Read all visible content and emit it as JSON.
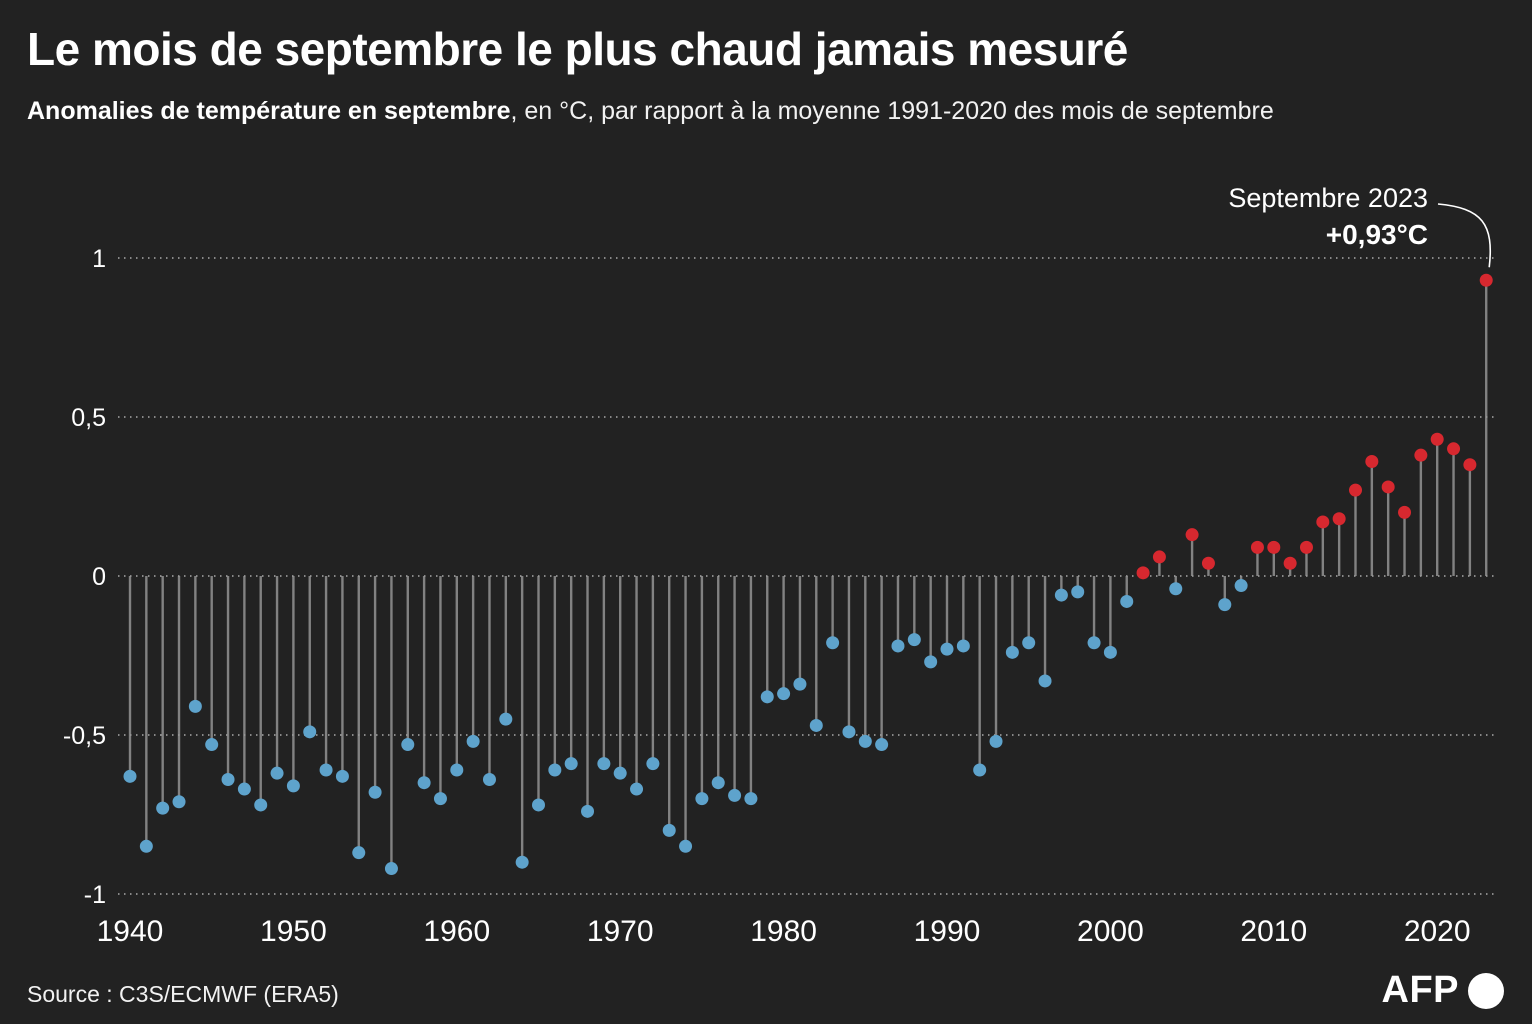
{
  "header": {
    "title": "Le mois de septembre le plus chaud jamais mesuré",
    "subtitle_bold": "Anomalies de température en septembre",
    "subtitle_rest": ", en °C, par rapport à la moyenne 1991-2020 des mois de septembre"
  },
  "annotation": {
    "line1": "Septembre 2023",
    "line2": "+0,93°C"
  },
  "footer": {
    "source": "Source : C3S/ECMWF (ERA5)",
    "logo": "AFP"
  },
  "colors": {
    "background": "#222222",
    "text": "#ffffff",
    "stem": "#9b9b9b",
    "gridline": "#cccccc",
    "negative_dot": "#5ea3cc",
    "positive_dot": "#d7282f"
  },
  "chart_data": {
    "type": "scatter",
    "variant": "lollipop-stem",
    "title": "Anomalies de température en septembre (°C) par rapport à la moyenne 1991-2020",
    "xlabel": "",
    "ylabel": "",
    "unit": "°C",
    "ylim": [
      -1,
      1
    ],
    "grid": "dotted-horizontal",
    "yticks": {
      "values": [
        1,
        0.5,
        0,
        -0.5,
        -1
      ],
      "labels": [
        "1",
        "0,5",
        "0",
        "-0,5",
        "-1"
      ]
    },
    "xticks": [
      1940,
      1950,
      1960,
      1970,
      1980,
      1990,
      2000,
      2010,
      2020
    ],
    "years": [
      1940,
      1941,
      1942,
      1943,
      1944,
      1945,
      1946,
      1947,
      1948,
      1949,
      1950,
      1951,
      1952,
      1953,
      1954,
      1955,
      1956,
      1957,
      1958,
      1959,
      1960,
      1961,
      1962,
      1963,
      1964,
      1965,
      1966,
      1967,
      1968,
      1969,
      1970,
      1971,
      1972,
      1973,
      1974,
      1975,
      1976,
      1977,
      1978,
      1979,
      1980,
      1981,
      1982,
      1983,
      1984,
      1985,
      1986,
      1987,
      1988,
      1989,
      1990,
      1991,
      1992,
      1993,
      1994,
      1995,
      1996,
      1997,
      1998,
      1999,
      2000,
      2001,
      2002,
      2003,
      2004,
      2005,
      2006,
      2007,
      2008,
      2009,
      2010,
      2011,
      2012,
      2013,
      2014,
      2015,
      2016,
      2017,
      2018,
      2019,
      2020,
      2021,
      2022,
      2023
    ],
    "values": [
      -0.63,
      -0.85,
      -0.73,
      -0.71,
      -0.41,
      -0.53,
      -0.64,
      -0.67,
      -0.72,
      -0.62,
      -0.66,
      -0.49,
      -0.61,
      -0.63,
      -0.87,
      -0.68,
      -0.92,
      -0.53,
      -0.65,
      -0.7,
      -0.61,
      -0.52,
      -0.64,
      -0.45,
      -0.9,
      -0.72,
      -0.61,
      -0.59,
      -0.74,
      -0.59,
      -0.62,
      -0.67,
      -0.59,
      -0.8,
      -0.85,
      -0.7,
      -0.65,
      -0.69,
      -0.7,
      -0.38,
      -0.37,
      -0.34,
      -0.47,
      -0.21,
      -0.49,
      -0.52,
      -0.53,
      -0.22,
      -0.2,
      -0.27,
      -0.23,
      -0.22,
      -0.61,
      -0.52,
      -0.24,
      -0.21,
      -0.33,
      -0.06,
      -0.05,
      -0.21,
      -0.24,
      -0.08,
      0.01,
      0.06,
      -0.04,
      0.13,
      0.04,
      -0.09,
      -0.03,
      0.09,
      0.09,
      0.04,
      0.09,
      0.17,
      0.18,
      0.27,
      0.36,
      0.28,
      0.2,
      0.38,
      0.43,
      0.4,
      0.35,
      0.93
    ],
    "highlight": {
      "year": 2023,
      "value": 0.93
    },
    "legend_position": "none"
  }
}
